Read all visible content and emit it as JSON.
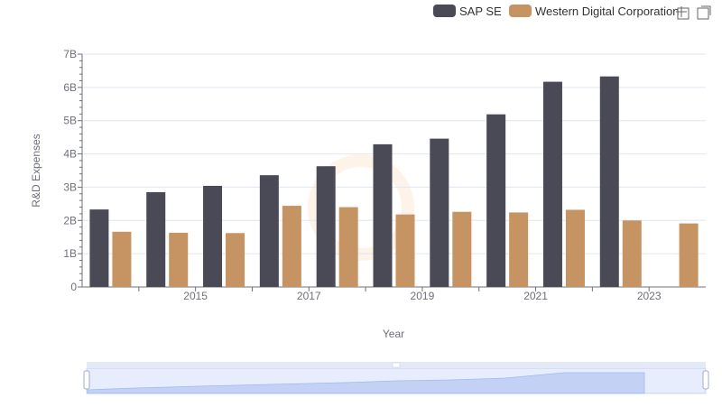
{
  "chart_data": {
    "type": "bar",
    "title": "",
    "xlabel": "Year",
    "ylabel": "R&D Expenses",
    "categories": [
      "2014",
      "2015",
      "2016",
      "2017",
      "2018",
      "2019",
      "2020",
      "2021",
      "2022",
      "2023",
      "2024"
    ],
    "x_tick_labels": [
      "2015",
      "2017",
      "2019",
      "2021",
      "2023"
    ],
    "y_tick_labels": [
      "0",
      "1B",
      "2B",
      "3B",
      "4B",
      "5B",
      "6B",
      "7B"
    ],
    "ylim": [
      0,
      7000000000
    ],
    "series": [
      {
        "name": "SAP SE",
        "color": "#4a4a57",
        "values": [
          2330000000,
          2850000000,
          3040000000,
          3360000000,
          3630000000,
          4290000000,
          4460000000,
          5190000000,
          6170000000,
          6330000000,
          null
        ]
      },
      {
        "name": "Western Digital Corporation",
        "color": "#c69463",
        "values": [
          1660000000,
          1630000000,
          1620000000,
          2440000000,
          2400000000,
          2180000000,
          2260000000,
          2240000000,
          2320000000,
          2000000000,
          1910000000
        ]
      }
    ],
    "legend_position": "top-right",
    "grid": true
  },
  "toolbox": {
    "zoom_icon": "zoom-icon",
    "restore_icon": "restore-icon"
  },
  "datazoom": {
    "handle_icon": "drag-handle-icon",
    "range_start": 0,
    "range_end": 100
  }
}
